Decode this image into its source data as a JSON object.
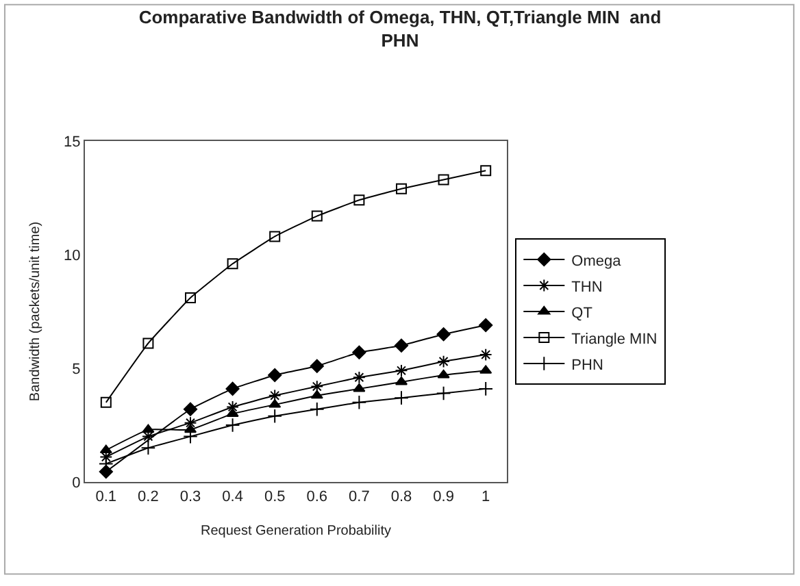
{
  "chart_data": {
    "type": "line",
    "title": "Comparative Bandwidth of Omega, THN, QT,Triangle MIN  and PHN",
    "xlabel": "Request Generation Probability",
    "ylabel": "Bandwidth (packets/unit time)",
    "categories": [
      "0.1",
      "0.2",
      "0.3",
      "0.4",
      "0.5",
      "0.6",
      "0.7",
      "0.8",
      "0.9",
      "1"
    ],
    "series": [
      {
        "name": "Omega",
        "color": "#000000",
        "marker": "diamond",
        "values": [
          0.45,
          null,
          3.2,
          4.1,
          4.7,
          5.1,
          5.7,
          6.0,
          6.5,
          6.9
        ]
      },
      {
        "name": "THN",
        "color": "#000000",
        "marker": "cross",
        "values": [
          1.1,
          2.0,
          2.6,
          3.3,
          3.8,
          4.2,
          4.6,
          4.9,
          5.3,
          5.6
        ]
      },
      {
        "name": "QT",
        "color": "#000000",
        "marker": "triangle",
        "values": [
          1.4,
          2.3,
          2.3,
          3.0,
          3.4,
          3.8,
          4.1,
          4.4,
          4.7,
          4.9
        ]
      },
      {
        "name": "Triangle MIN",
        "color": "#000000",
        "marker": "square",
        "values": [
          3.5,
          6.1,
          8.1,
          9.6,
          10.8,
          11.7,
          12.4,
          12.9,
          13.3,
          13.7
        ]
      },
      {
        "name": "PHN",
        "color": "#000000",
        "marker": "plus",
        "values": [
          0.8,
          1.5,
          2.0,
          2.5,
          2.9,
          3.2,
          3.5,
          3.7,
          3.9,
          4.1
        ]
      }
    ],
    "ylim": [
      0,
      15
    ],
    "yticks": [
      0,
      5,
      10,
      15
    ],
    "legend": "right"
  }
}
